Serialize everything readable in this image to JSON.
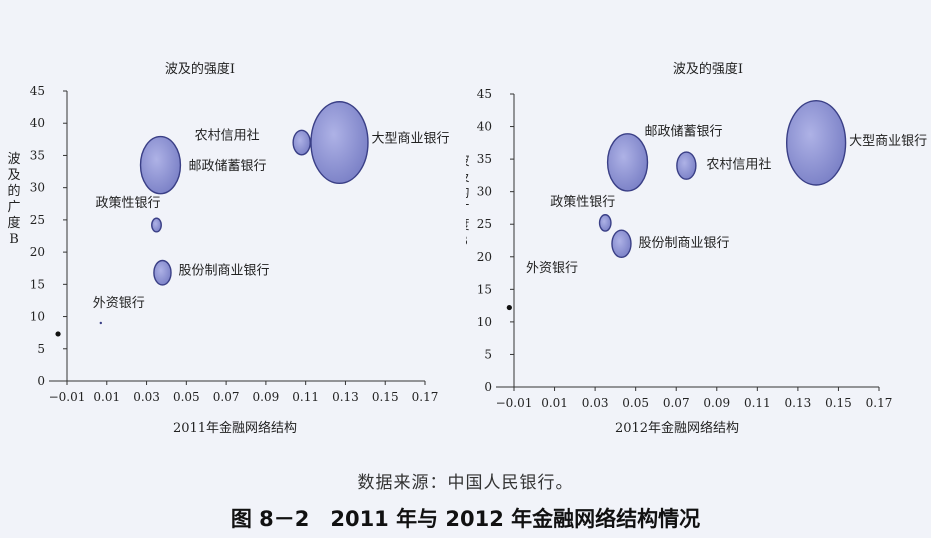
{
  "chart_data": [
    {
      "type": "scatter",
      "title": "波及的强度I",
      "xlabel": "2011年金融网络结构",
      "ylabel": "波及的广度B",
      "xlim": [
        -0.01,
        0.17
      ],
      "ylim": [
        0,
        45
      ],
      "xticks": [
        -0.01,
        0.01,
        0.03,
        0.05,
        0.07,
        0.09,
        0.11,
        0.13,
        0.15,
        0.17
      ],
      "yticks": [
        0,
        5,
        10,
        15,
        20,
        25,
        30,
        35,
        40,
        45
      ],
      "points": [
        {
          "label": "大型商业银行",
          "x": 0.127,
          "y": 37,
          "size": 60
        },
        {
          "label": "农村信用社",
          "x": 0.108,
          "y": 37,
          "size": 18
        },
        {
          "label": "邮政储蓄银行",
          "x": 0.037,
          "y": 33.5,
          "size": 42
        },
        {
          "label": "政策性银行",
          "x": 0.035,
          "y": 24.2,
          "size": 10
        },
        {
          "label": "股份制商业银行",
          "x": 0.038,
          "y": 16.8,
          "size": 18
        },
        {
          "label": "外资银行",
          "x": 0.007,
          "y": 9,
          "size": 2
        }
      ],
      "outlier": {
        "x": -0.0145,
        "y": 7.3
      }
    },
    {
      "type": "scatter",
      "title": "波及的强度I",
      "xlabel": "2012年金融网络结构",
      "ylabel": "波及的广度B",
      "xlim": [
        -0.01,
        0.17
      ],
      "ylim": [
        0,
        45
      ],
      "xticks": [
        -0.01,
        0.01,
        0.03,
        0.05,
        0.07,
        0.09,
        0.11,
        0.13,
        0.15,
        0.17
      ],
      "yticks": [
        0,
        5,
        10,
        15,
        20,
        25,
        30,
        35,
        40,
        45
      ],
      "points": [
        {
          "label": "大型商业银行",
          "x": 0.139,
          "y": 37.5,
          "size": 62
        },
        {
          "label": "邮政储蓄银行",
          "x": 0.046,
          "y": 34.5,
          "size": 42
        },
        {
          "label": "农村信用社",
          "x": 0.075,
          "y": 34,
          "size": 20
        },
        {
          "label": "政策性银行",
          "x": 0.035,
          "y": 25.2,
          "size": 12
        },
        {
          "label": "股份制商业银行",
          "x": 0.043,
          "y": 22,
          "size": 20
        },
        {
          "label": "外资银行",
          "x": null,
          "y": null,
          "size": 0
        }
      ],
      "outlier": {
        "x": -0.0123,
        "y": 12.2
      }
    }
  ],
  "ylabel_chars": [
    "波",
    "及",
    "的",
    "广",
    "度",
    "B"
  ],
  "source_note": "数据来源：中国人民银行。",
  "figure_caption": "图 8－2　2011 年与 2012 年金融网络结构情况",
  "colors": {
    "bubble_fill": "#7a80c6",
    "bubble_edge": "#3a3f86",
    "axis": "#333333"
  }
}
